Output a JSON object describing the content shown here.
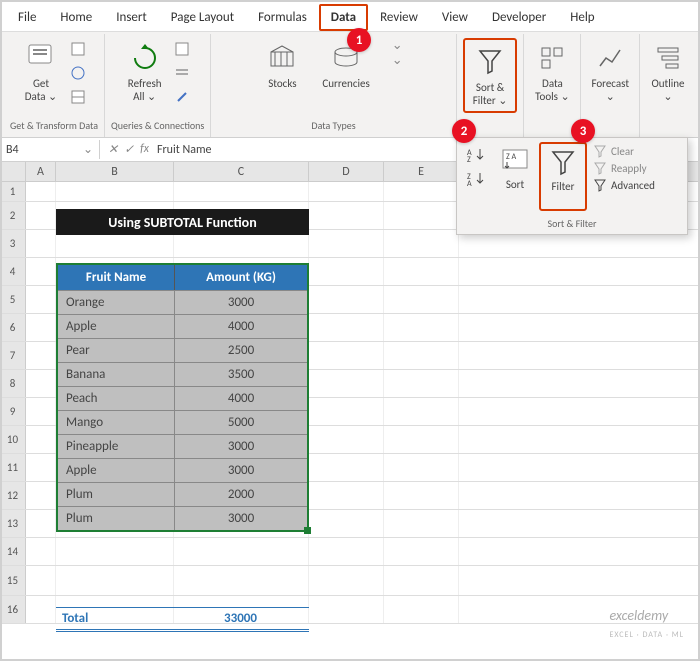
{
  "tabs": [
    "File",
    "Home",
    "Insert",
    "Page Layout",
    "Formulas",
    "Data",
    "Review",
    "View",
    "Developer",
    "Help"
  ],
  "active_tab": "Data",
  "ribbon": {
    "get_data": "Get\nData",
    "refresh_all": "Refresh\nAll",
    "stocks": "Stocks",
    "currencies": "Currencies",
    "sort_filter": "Sort &\nFilter",
    "data_tools": "Data\nTools",
    "forecast": "Forecast",
    "outline": "Outline",
    "group1": "Get & Transform Data",
    "group2": "Queries & Connections",
    "group3": "Data Types"
  },
  "dropdown": {
    "sort": "Sort",
    "filter": "Filter",
    "clear": "Clear",
    "reapply": "Reapply",
    "advanced": "Advanced",
    "label": "Sort & Filter"
  },
  "namebox": "B4",
  "formula_value": "Fruit Name",
  "columns": [
    "A",
    "B",
    "C",
    "D",
    "E"
  ],
  "rows": [
    "1",
    "2",
    "3",
    "4",
    "5",
    "6",
    "7",
    "8",
    "9",
    "10",
    "11",
    "12",
    "13",
    "14",
    "15",
    "16"
  ],
  "banner_title": "Using SUBTOTAL Function",
  "table": {
    "headers": [
      "Fruit Name",
      "Amount (KG)"
    ],
    "rows": [
      [
        "Orange",
        "3000"
      ],
      [
        "Apple",
        "4000"
      ],
      [
        "Pear",
        "2500"
      ],
      [
        "Banana",
        "3500"
      ],
      [
        "Peach",
        "4000"
      ],
      [
        "Mango",
        "5000"
      ],
      [
        "Pineapple",
        "3000"
      ],
      [
        "Apple",
        "3000"
      ],
      [
        "Plum",
        "2000"
      ],
      [
        "Plum",
        "3000"
      ]
    ]
  },
  "total": {
    "label": "Total",
    "value": "33000"
  },
  "watermark": {
    "main": "exceldemy",
    "sub": "EXCEL · DATA · ML"
  }
}
